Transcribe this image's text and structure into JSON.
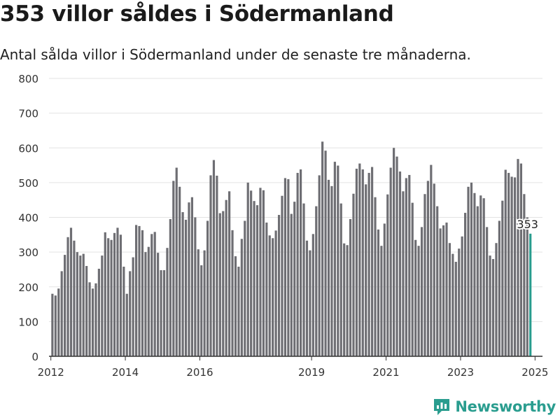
{
  "title": "353 villor såldes i Södermanland",
  "subtitle": "Antal sålda villor i Södermanland under de senaste tre månaderna.",
  "brand": {
    "name": "Newsworthy",
    "icon": "newsworthy-logo-icon"
  },
  "colors": {
    "bar": "#6e6e73",
    "highlight": "#2a9d8f",
    "grid": "#e3e3e3",
    "axis": "#333333"
  },
  "chart_data": {
    "type": "bar",
    "title": "353 villor såldes i Södermanland",
    "subtitle": "Antal sålda villor i Södermanland under de senaste tre månaderna.",
    "xlabel": "",
    "ylabel": "",
    "ylim": [
      0,
      800
    ],
    "yticks": [
      "0",
      "100",
      "200",
      "300",
      "400",
      "500",
      "600",
      "700",
      "800"
    ],
    "xticks": [
      {
        "label": "2012",
        "year": 2012
      },
      {
        "label": "2014",
        "year": 2014
      },
      {
        "label": "2016",
        "year": 2016
      },
      {
        "label": "2019",
        "year": 2019
      },
      {
        "label": "2021",
        "year": 2021
      },
      {
        "label": "2023",
        "year": 2023
      },
      {
        "label": "2025",
        "year": 2025
      }
    ],
    "grid": true,
    "legend": "none",
    "highlight_label": "353",
    "series": [
      {
        "name": "",
        "segments": [
          {
            "start": "2012-01",
            "values": [
              180,
              175,
              195,
              245,
              292,
              343,
              370,
              333,
              300,
              290,
              295,
              260,
              213,
              195,
              210,
              252,
              290,
              357,
              340,
              335,
              355,
              370,
              350,
              258
            ]
          },
          {
            "start": "2014-01",
            "values": [
              180,
              245,
              285,
              378,
              375,
              363,
              300,
              315,
              352,
              358,
              298,
              248,
              248,
              312,
              395,
              505,
              543,
              488,
              415,
              393,
              443,
              458,
              400,
              308,
              262,
              305,
              390,
              521,
              565,
              520,
              412,
              418,
              450,
              475,
              363,
              288,
              258,
              338,
              390,
              500,
              477,
              447,
              435,
              485,
              478,
              385,
              348,
              340,
              362,
              407,
              462,
              513,
              510,
              410,
              445,
              528,
              538,
              440,
              333,
              305,
              352,
              432,
              521,
              618,
              592,
              508,
              490,
              560,
              549,
              440,
              325,
              320,
              395,
              468,
              540,
              555,
              538,
              495,
              528,
              545,
              458,
              365,
              318,
              382,
              466,
              543,
              600,
              575,
              532,
              475,
              513,
              522,
              442,
              335,
              318,
              372,
              467,
              505,
              551,
              497,
              432,
              368,
              377,
              385,
              326,
              295,
              272,
              310,
              345,
              413,
              488,
              500,
              470,
              432,
              463,
              455,
              372,
              290,
              280,
              326,
              390,
              448,
              537,
              528,
              517,
              515,
              568,
              555,
              467,
              400,
              353
            ]
          }
        ]
      }
    ]
  }
}
